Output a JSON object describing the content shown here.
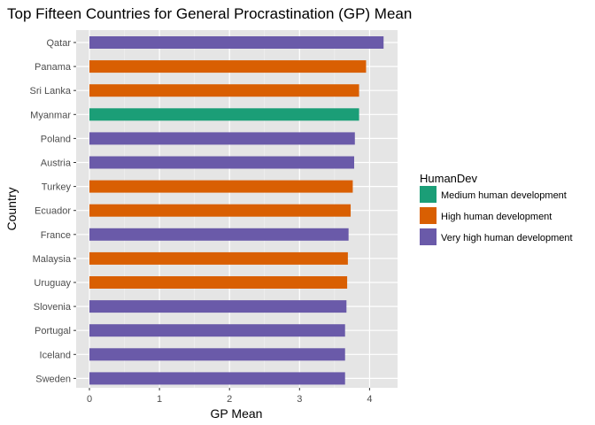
{
  "chart_data": {
    "type": "bar",
    "orientation": "horizontal",
    "title": "Top Fifteen Countries for General Procrastination (GP) Mean",
    "xlabel": "GP Mean",
    "ylabel": "Country",
    "xlim": [
      0,
      4.3
    ],
    "x_ticks": [
      0,
      1,
      2,
      3,
      4
    ],
    "grid": true,
    "panel_background": "#e5e5e5",
    "legend": {
      "title": "HumanDev",
      "position": "right",
      "entries": [
        {
          "label": "Medium human development",
          "color": "#1b9e77"
        },
        {
          "label": "High human development",
          "color": "#d95f02"
        },
        {
          "label": "Very high human development",
          "color": "#6a5aa9"
        }
      ]
    },
    "bars": [
      {
        "category": "Qatar",
        "value": 4.2,
        "group": "Very high human development"
      },
      {
        "category": "Panama",
        "value": 3.95,
        "group": "High human development"
      },
      {
        "category": "Sri Lanka",
        "value": 3.85,
        "group": "High human development"
      },
      {
        "category": "Myanmar",
        "value": 3.85,
        "group": "Medium human development"
      },
      {
        "category": "Poland",
        "value": 3.79,
        "group": "Very high human development"
      },
      {
        "category": "Austria",
        "value": 3.78,
        "group": "Very high human development"
      },
      {
        "category": "Turkey",
        "value": 3.76,
        "group": "High human development"
      },
      {
        "category": "Ecuador",
        "value": 3.73,
        "group": "High human development"
      },
      {
        "category": "France",
        "value": 3.7,
        "group": "Very high human development"
      },
      {
        "category": "Malaysia",
        "value": 3.69,
        "group": "High human development"
      },
      {
        "category": "Uruguay",
        "value": 3.68,
        "group": "High human development"
      },
      {
        "category": "Slovenia",
        "value": 3.67,
        "group": "Very high human development"
      },
      {
        "category": "Portugal",
        "value": 3.65,
        "group": "Very high human development"
      },
      {
        "category": "Iceland",
        "value": 3.65,
        "group": "Very high human development"
      },
      {
        "category": "Sweden",
        "value": 3.65,
        "group": "Very high human development"
      }
    ]
  }
}
